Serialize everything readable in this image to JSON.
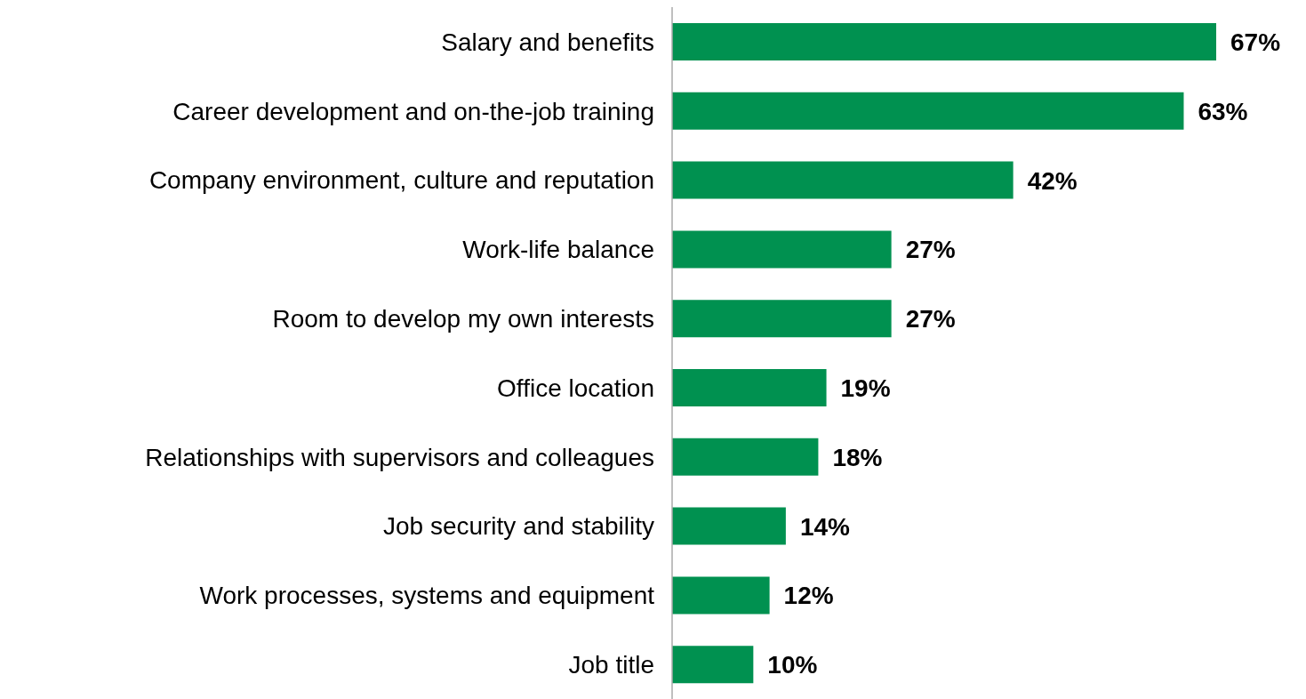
{
  "chart_data": {
    "type": "bar",
    "orientation": "horizontal",
    "tick_labels": "y",
    "grid": false,
    "legend": false,
    "categories": [
      "Salary and benefits",
      "Career development and on-the-job training",
      "Company environment, culture and reputation",
      "Work-life balance",
      "Room to develop my own interests",
      "Office location",
      "Relationships with supervisors and colleagues",
      "Job security and stability",
      "Work processes, systems and equipment",
      "Job title"
    ],
    "values": [
      67,
      63,
      42,
      27,
      27,
      19,
      18,
      14,
      12,
      10
    ],
    "value_labels": [
      "67%",
      "63%",
      "42%",
      "27%",
      "27%",
      "19%",
      "18%",
      "14%",
      "12%",
      "10%"
    ],
    "color": "#009150"
  }
}
